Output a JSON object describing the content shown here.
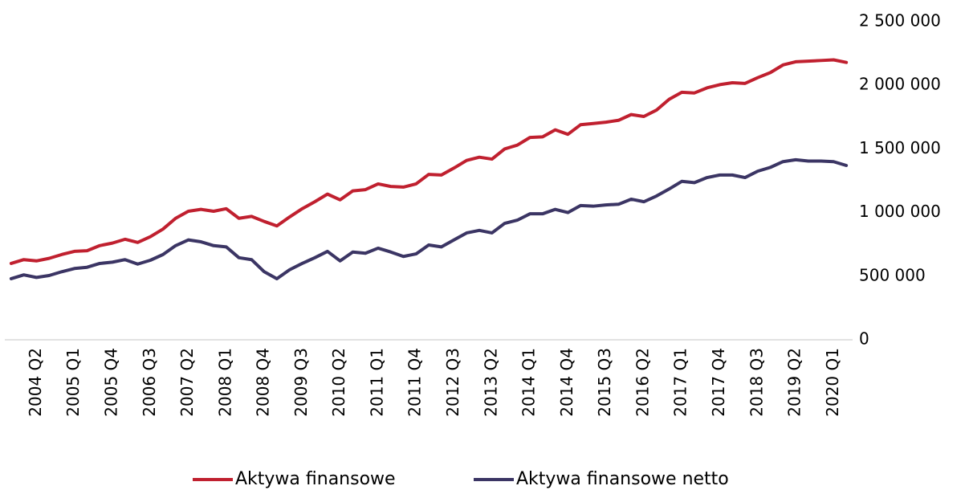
{
  "chart_data": {
    "type": "line",
    "categories": [
      null,
      null,
      "2004 Q2",
      null,
      null,
      "2005 Q1",
      null,
      null,
      "2005 Q4",
      null,
      null,
      "2006 Q3",
      null,
      null,
      "2007 Q2",
      null,
      null,
      "2008 Q1",
      null,
      null,
      "2008 Q4",
      null,
      null,
      "2009 Q3",
      null,
      null,
      "2010 Q2",
      null,
      null,
      "2011 Q1",
      null,
      null,
      "2011 Q4",
      null,
      null,
      "2012 Q3",
      null,
      null,
      "2013 Q2",
      null,
      null,
      "2014 Q1",
      null,
      null,
      "2014 Q4",
      null,
      null,
      "2015 Q3",
      null,
      null,
      "2016 Q2",
      null,
      null,
      "2017 Q1",
      null,
      null,
      "2017 Q4",
      null,
      null,
      "2018 Q3",
      null,
      null,
      "2019 Q2",
      null,
      null,
      "2020 Q1",
      null
    ],
    "series": [
      {
        "name": "Aktywa finansowe",
        "color": "#c0202f",
        "values": [
          600000,
          630000,
          620000,
          640000,
          670000,
          695000,
          700000,
          740000,
          760000,
          790000,
          765000,
          810000,
          870000,
          955000,
          1010000,
          1025000,
          1010000,
          1030000,
          955000,
          970000,
          930000,
          895000,
          965000,
          1030000,
          1085000,
          1145000,
          1100000,
          1170000,
          1180000,
          1225000,
          1205000,
          1200000,
          1225000,
          1300000,
          1295000,
          1350000,
          1410000,
          1435000,
          1420000,
          1500000,
          1530000,
          1590000,
          1595000,
          1650000,
          1615000,
          1690000,
          1700000,
          1710000,
          1725000,
          1770000,
          1755000,
          1805000,
          1890000,
          1945000,
          1940000,
          1980000,
          2005000,
          2020000,
          2015000,
          2060000,
          2100000,
          2160000,
          2185000,
          2190000,
          2195000,
          2200000,
          2180000
        ]
      },
      {
        "name": "Aktywa finansowe netto",
        "color": "#3b3564",
        "values": [
          480000,
          510000,
          490000,
          505000,
          535000,
          560000,
          570000,
          600000,
          610000,
          630000,
          595000,
          625000,
          670000,
          740000,
          785000,
          770000,
          740000,
          730000,
          645000,
          630000,
          535000,
          480000,
          550000,
          600000,
          645000,
          695000,
          620000,
          690000,
          680000,
          720000,
          690000,
          655000,
          675000,
          745000,
          730000,
          785000,
          840000,
          860000,
          840000,
          915000,
          940000,
          990000,
          990000,
          1025000,
          1000000,
          1055000,
          1050000,
          1060000,
          1065000,
          1105000,
          1085000,
          1130000,
          1185000,
          1245000,
          1235000,
          1275000,
          1295000,
          1295000,
          1275000,
          1325000,
          1355000,
          1400000,
          1415000,
          1405000,
          1405000,
          1400000,
          1370000
        ]
      }
    ],
    "ylim": [
      0,
      2500000
    ],
    "yticks": [
      0,
      {
        "value": 500000,
        "label": "500 000"
      },
      {
        "value": 1000000,
        "label": "1 000 000"
      },
      {
        "value": 1500000,
        "label": "1 500 000"
      },
      {
        "value": 2000000,
        "label": "2 000 000"
      },
      {
        "value": 2500000,
        "label": "2 500 000"
      }
    ],
    "grid": false,
    "legend": "bottom"
  }
}
